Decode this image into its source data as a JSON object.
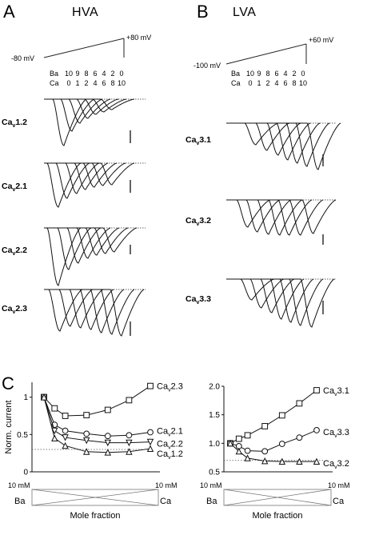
{
  "panels": {
    "a": "A",
    "b": "B",
    "c": "C"
  },
  "headers": {
    "hva": "HVA",
    "lva": "LVA"
  },
  "ramp_a": {
    "start": "-80 mV",
    "end": "+80 mV"
  },
  "ramp_b": {
    "start": "-100 mV",
    "end": "+60 mV"
  },
  "sol_labels": {
    "ba": "Ba",
    "ca": "Ca"
  },
  "ba_values": [
    "10",
    "9",
    "8",
    "6",
    "4",
    "2",
    "0"
  ],
  "ca_values": [
    "0",
    "1",
    "2",
    "4",
    "6",
    "8",
    "10"
  ],
  "channels_hva": [
    {
      "base": "Ca",
      "sub": "v",
      "rest": "1.2"
    },
    {
      "base": "Ca",
      "sub": "v",
      "rest": "2.1"
    },
    {
      "base": "Ca",
      "sub": "v",
      "rest": "2.2"
    },
    {
      "base": "Ca",
      "sub": "v",
      "rest": "2.3"
    }
  ],
  "channels_lva": [
    {
      "base": "Ca",
      "sub": "v",
      "rest": "3.1"
    },
    {
      "base": "Ca",
      "sub": "v",
      "rest": "3.2"
    },
    {
      "base": "Ca",
      "sub": "v",
      "rest": "3.3"
    }
  ],
  "bottom_axis": {
    "left_conc": "10 mM",
    "right_conc": "10 mM",
    "left_ion": "Ba",
    "right_ion": "Ca",
    "xlabel": "Mole fraction"
  },
  "chart_data": [
    {
      "type": "line",
      "ylabel": "Norm. current",
      "xlabel": "Mole fraction",
      "x": [
        0,
        1,
        2,
        4,
        6,
        8,
        10
      ],
      "ylim": [
        0,
        1.2
      ],
      "yticks": [
        "0",
        "0.5",
        "1"
      ],
      "reference_line": 0.3,
      "series": [
        {
          "name": "Cav2.3",
          "values": [
            1.0,
            0.85,
            0.75,
            0.76,
            0.83,
            0.96,
            1.15
          ]
        },
        {
          "name": "Cav2.1",
          "values": [
            1.0,
            0.63,
            0.55,
            0.51,
            0.48,
            0.49,
            0.53
          ]
        },
        {
          "name": "Cav2.2",
          "values": [
            1.0,
            0.55,
            0.46,
            0.42,
            0.39,
            0.39,
            0.4
          ]
        },
        {
          "name": "Cav1.2",
          "values": [
            1.0,
            0.45,
            0.35,
            0.27,
            0.26,
            0.27,
            0.31
          ]
        }
      ]
    },
    {
      "type": "line",
      "xlabel": "Mole fraction",
      "x": [
        0,
        1,
        2,
        4,
        6,
        8,
        10
      ],
      "ylim": [
        0.5,
        2.0
      ],
      "yticks": [
        "0.5",
        "1.0",
        "1.5",
        "2.0"
      ],
      "reference_line": 0.7,
      "series": [
        {
          "name": "Cav3.1",
          "values": [
            1.0,
            1.08,
            1.14,
            1.3,
            1.49,
            1.7,
            1.93
          ]
        },
        {
          "name": "Cav3.3",
          "values": [
            1.0,
            0.95,
            0.87,
            0.86,
            0.99,
            1.1,
            1.23
          ]
        },
        {
          "name": "Cav3.2",
          "values": [
            1.0,
            0.86,
            0.74,
            0.69,
            0.68,
            0.68,
            0.68
          ]
        }
      ]
    }
  ]
}
